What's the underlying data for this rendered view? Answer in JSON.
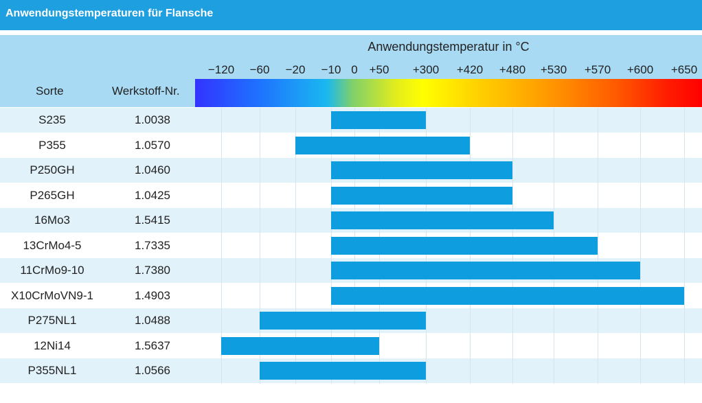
{
  "title": "Anwendungstemperaturen für Flansche",
  "chart_data": {
    "type": "bar",
    "orientation": "horizontal-range",
    "axis_title": "Anwendungstemperatur in °C",
    "ticks": [
      "−120",
      "−60",
      "−20",
      "−10",
      "0",
      "+50",
      "+300",
      "+420",
      "+480",
      "+530",
      "+570",
      "+600",
      "+650"
    ],
    "tick_values": [
      -120,
      -60,
      -20,
      -10,
      0,
      50,
      300,
      420,
      480,
      530,
      570,
      600,
      650
    ],
    "columns": {
      "sorte": "Sorte",
      "werkstoff": "Werkstoff-Nr."
    },
    "rows": [
      {
        "sorte": "S235",
        "werkstoff": "1.0038",
        "min": -10,
        "max": 300
      },
      {
        "sorte": "P355",
        "werkstoff": "1.0570",
        "min": -20,
        "max": 420
      },
      {
        "sorte": "P250GH",
        "werkstoff": "1.0460",
        "min": -10,
        "max": 480
      },
      {
        "sorte": "P265GH",
        "werkstoff": "1.0425",
        "min": -10,
        "max": 480
      },
      {
        "sorte": "16Mo3",
        "werkstoff": "1.5415",
        "min": -10,
        "max": 530
      },
      {
        "sorte": "13CrMo4-5",
        "werkstoff": "1.7335",
        "min": -10,
        "max": 570
      },
      {
        "sorte": "11CrMo9-10",
        "werkstoff": "1.7380",
        "min": -10,
        "max": 600
      },
      {
        "sorte": "X10CrMoVN9-1",
        "werkstoff": "1.4903",
        "min": -10,
        "max": 650
      },
      {
        "sorte": "P275NL1",
        "werkstoff": "1.0488",
        "min": -60,
        "max": 300
      },
      {
        "sorte": "12Ni14",
        "werkstoff": "1.5637",
        "min": -120,
        "max": 50
      },
      {
        "sorte": "P355NL1",
        "werkstoff": "1.0566",
        "min": -60,
        "max": 300
      }
    ],
    "colors": {
      "header": "#1e9fe0",
      "bar": "#0e9ee0",
      "band": "#a9daf4",
      "row_alt": "#e2f2fb"
    }
  }
}
